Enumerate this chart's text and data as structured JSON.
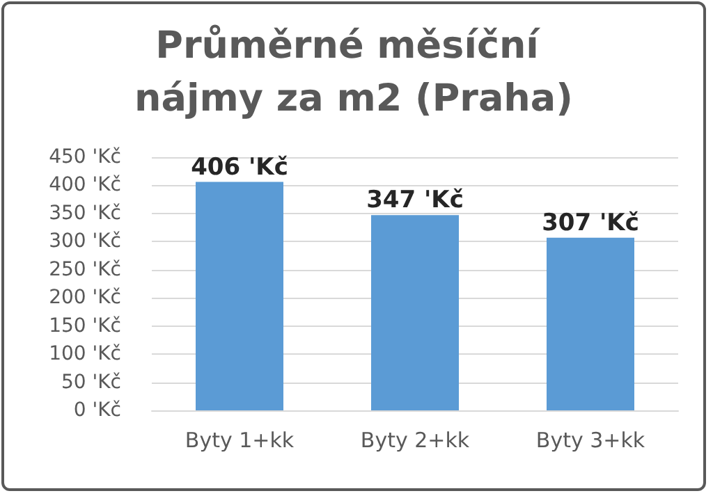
{
  "chart_data": {
    "type": "bar",
    "title": "Průměrné měsíční nájmy za m2 (Praha)",
    "categories": [
      "Byty 1+kk",
      "Byty 2+kk",
      "Byty 3+kk"
    ],
    "values": [
      406,
      347,
      307
    ],
    "color": "#5b9bd5",
    "value_labels": [
      "406 'Kč",
      "347 'Kč",
      "307 'Kč"
    ],
    "ylim": [
      0,
      450
    ],
    "yticks": [
      {
        "value": 0,
        "label": "0 'Kč"
      },
      {
        "value": 50,
        "label": "50 'Kč"
      },
      {
        "value": 100,
        "label": "100 'Kč"
      },
      {
        "value": 150,
        "label": "150 'Kč"
      },
      {
        "value": 200,
        "label": "200 'Kč"
      },
      {
        "value": 250,
        "label": "250 'Kč"
      },
      {
        "value": 300,
        "label": "300 'Kč"
      },
      {
        "value": 350,
        "label": "350 'Kč"
      },
      {
        "value": 400,
        "label": "400 'Kč"
      },
      {
        "value": 450,
        "label": "450 'Kč"
      }
    ],
    "grid": true
  }
}
